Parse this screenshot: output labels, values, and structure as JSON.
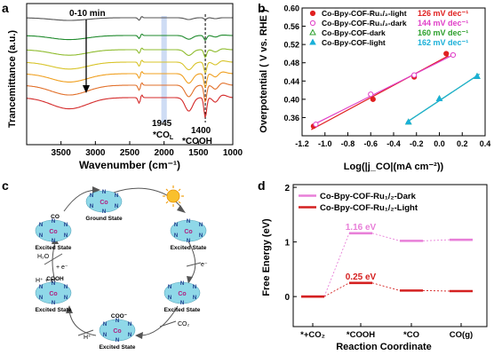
{
  "panels": {
    "a": {
      "letter": "a"
    },
    "b": {
      "letter": "b"
    },
    "c": {
      "letter": "c"
    },
    "d": {
      "letter": "d"
    }
  },
  "chart_data": [
    {
      "panel": "a",
      "type": "line",
      "xlabel": "Wavenumber (cm⁻¹)",
      "ylabel": "Trancemittance (a.u.)",
      "xlim": [
        4000,
        1000
      ],
      "x_reversed": true,
      "x_ticks": [
        3500,
        3000,
        2500,
        2000,
        1500,
        1000
      ],
      "y_ticks_shown": false,
      "annotations": {
        "time_label": "0-10 min",
        "peak1_value": "1945",
        "peak1_label": "*CO",
        "peak1_sub": "L",
        "peak2_value": "1400",
        "peak2_label": "*COOH"
      },
      "highlight_band": [
        2040,
        1960
      ],
      "highlight_color": "#c5d6f2",
      "series": [
        {
          "color": "#555555"
        },
        {
          "color": "#1f8a2c"
        },
        {
          "color": "#8fbc2f"
        },
        {
          "color": "#d8c42a"
        },
        {
          "color": "#f0a020"
        },
        {
          "color": "#e2702a"
        },
        {
          "color": "#d42a2a"
        }
      ]
    },
    {
      "panel": "b",
      "type": "scatter",
      "xlabel": "Log(|j_CO|(mA cm⁻²))",
      "ylabel": "Overpotential ( V vs. RHE )",
      "xlim": [
        -1.2,
        0.4
      ],
      "ylim": [
        0.32,
        0.6
      ],
      "x_ticks": [
        -1.2,
        -1.0,
        -0.8,
        -0.6,
        -0.4,
        -0.2,
        0.0,
        0.2,
        0.4
      ],
      "x_tick_labels": [
        "-1.2",
        "-1.0",
        "-0.8",
        "-0.6",
        "-0.4",
        "-0.2",
        "0.0",
        "0.2",
        "0.4"
      ],
      "y_ticks": [
        0.36,
        0.4,
        0.44,
        0.48,
        0.52,
        0.56,
        0.6
      ],
      "y_tick_labels": [
        "0.36",
        "0.40",
        "0.44",
        "0.48",
        "0.52",
        "0.56",
        "0.60"
      ],
      "legend_position": "top-left",
      "series": [
        {
          "name": "Co-Bpy-COF-Ru₁/₂-light",
          "slope": "126 mV dec⁻¹",
          "color": "#e02020",
          "marker": "filled-circle",
          "x": [
            -1.1,
            -0.58,
            -0.22,
            0.06
          ],
          "y": [
            0.341,
            0.4,
            0.449,
            0.5
          ]
        },
        {
          "name": "Co-Bpy-COF-Ru₁/₂-dark",
          "slope": "144 mV dec⁻¹",
          "color": "#e040c8",
          "marker": "open-circle",
          "x": [
            -1.08,
            -0.6,
            -0.22,
            0.12
          ],
          "y": [
            0.345,
            0.411,
            0.453,
            0.497
          ]
        },
        {
          "name": "Co-Bpy-COF-dark",
          "slope": "160 mV dec⁻¹",
          "color": "#2ca02c",
          "marker": "open-triangle",
          "x": [
            -0.27,
            0.0,
            0.33
          ],
          "y": [
            0.35,
            0.401,
            0.45
          ]
        },
        {
          "name": "Co-Bpy-COF-light",
          "slope": "162 mV dec⁻¹",
          "color": "#1ab0d8",
          "marker": "filled-triangle",
          "x": [
            -0.27,
            0.0,
            0.33
          ],
          "y": [
            0.35,
            0.401,
            0.45
          ]
        }
      ]
    },
    {
      "panel": "d",
      "type": "line",
      "xlabel": "Reaction Coordinate",
      "ylabel": "Free Energy (eV)",
      "ylim": [
        -0.55,
        2.05
      ],
      "y_ticks": [
        0,
        1,
        2
      ],
      "y_tick_labels": [
        "0",
        "1",
        "2"
      ],
      "categories": [
        "*+CO₂",
        "*COOH",
        "*CO",
        "CO(g)"
      ],
      "legend_position": "top-left",
      "series": [
        {
          "name": "Co-Bpy-COF-Ru₁/₂-Dark",
          "color": "#e87fd8",
          "values": [
            0.0,
            1.16,
            1.02,
            1.04
          ],
          "label_text": "1.16 eV"
        },
        {
          "name": "Co-Bpy-COF-Ru₁/₂-Light",
          "color": "#d42020",
          "values": [
            0.0,
            0.25,
            0.11,
            0.1
          ],
          "label_text": "0.25 eV"
        }
      ]
    }
  ],
  "scheme": {
    "states": {
      "ground": "Ground State",
      "excited_1": "Excited State",
      "excited_2": "Excited State",
      "excited_3": "Excited State",
      "excited_4": "Excited State",
      "excited_5": "Excited State"
    },
    "reagents": {
      "e1": "e⁻",
      "co2": "CO₂",
      "h_plus_1": "H⁺",
      "h_plus_e": "H⁺ + e⁻",
      "h2o": "H₂O",
      "e2": "+ e⁻"
    },
    "adsorbates": {
      "co": "CO",
      "coo": "COO⁻",
      "cooh": "COOH"
    },
    "metal_label": "Co",
    "ligand_atom": "N",
    "molecule_color": "#8fd8e8"
  }
}
